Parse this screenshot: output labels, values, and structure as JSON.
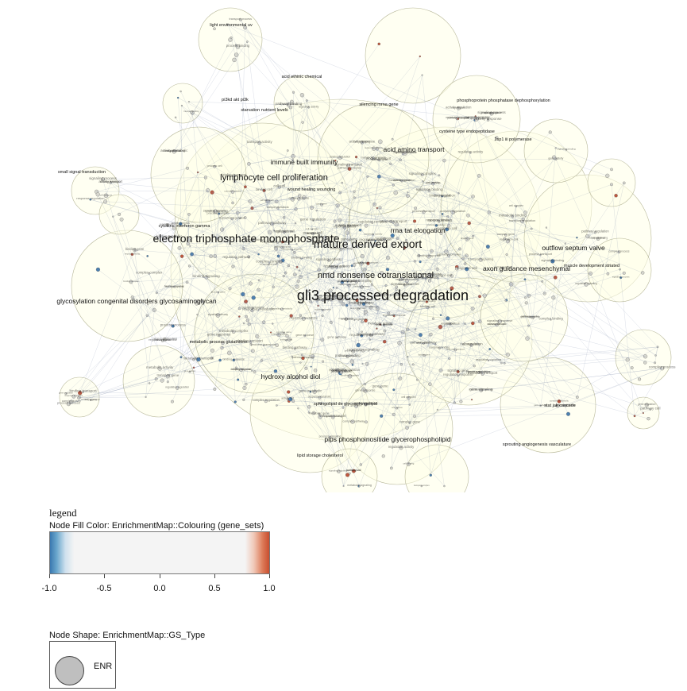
{
  "network": {
    "labels": [
      {
        "text": "gli3 processed degradation",
        "size": "xl"
      },
      {
        "text": "electron triphosphate monophosphate",
        "size": "lg"
      },
      {
        "text": "mature derived export",
        "size": "lg"
      },
      {
        "text": "nmd nonsense cotranslational",
        "size": "md"
      },
      {
        "text": "lymphocyte cell proliferation",
        "size": "md"
      },
      {
        "text": "glycosylation congenital disorders glycosaminoglycan",
        "size": "sm"
      },
      {
        "text": "hydroxy alcohol diol",
        "size": "sm"
      },
      {
        "text": "pips phosphoinositide glycerophospholipid",
        "size": "sm"
      },
      {
        "text": "axon guidance mesenchymal",
        "size": "sm"
      },
      {
        "text": "outflow septum valve",
        "size": "sm"
      },
      {
        "text": "acid amino transport",
        "size": "sm"
      },
      {
        "text": "rrna tat elongation",
        "size": "sm"
      },
      {
        "text": "immune built immunity",
        "size": "sm"
      },
      {
        "text": "lipid storage cholesterol",
        "size": "xs"
      },
      {
        "text": "sprouting angiogenesis vasculature",
        "size": "xs"
      },
      {
        "text": "stat jak cascade",
        "size": "xs"
      },
      {
        "text": "phosphoprotein phosphatase dephosphorylation",
        "size": "xs"
      },
      {
        "text": "cysteine type endopeptidase",
        "size": "xs"
      },
      {
        "text": "silencing mrna gene",
        "size": "xs"
      },
      {
        "text": "starvation nutrient levels",
        "size": "xs"
      },
      {
        "text": "small signal transduction",
        "size": "xs"
      },
      {
        "text": "light environmental uv",
        "size": "xs"
      },
      {
        "text": "pi3kd akt pi3k",
        "size": "xs"
      },
      {
        "text": "acid ethinic chemical",
        "size": "xs"
      },
      {
        "text": "wound healing wounding",
        "size": "xs"
      },
      {
        "text": "sphingolipid de glycosphingolipid",
        "size": "xs"
      },
      {
        "text": "metabolic process glutathione",
        "size": "xs"
      },
      {
        "text": "muscle development striated",
        "size": "xs"
      },
      {
        "text": "cytokine interferon gamma",
        "size": "xs"
      },
      {
        "text": "2sp1 iii polymerase",
        "size": "xs"
      }
    ]
  },
  "legend": {
    "title": "legend",
    "fill_title": "Node Fill Color:  EnrichmentMap::Colouring (gene_sets)",
    "ticks": [
      "-1.0",
      "-0.5",
      "0.0",
      "0.5",
      "1.0"
    ],
    "gradient_colors": [
      "#3a78b0",
      "#f4f4f4",
      "#c84e2f"
    ],
    "shape_title": "Node Shape:  EnrichmentMap::GS_Type",
    "shape_label": "ENR"
  }
}
